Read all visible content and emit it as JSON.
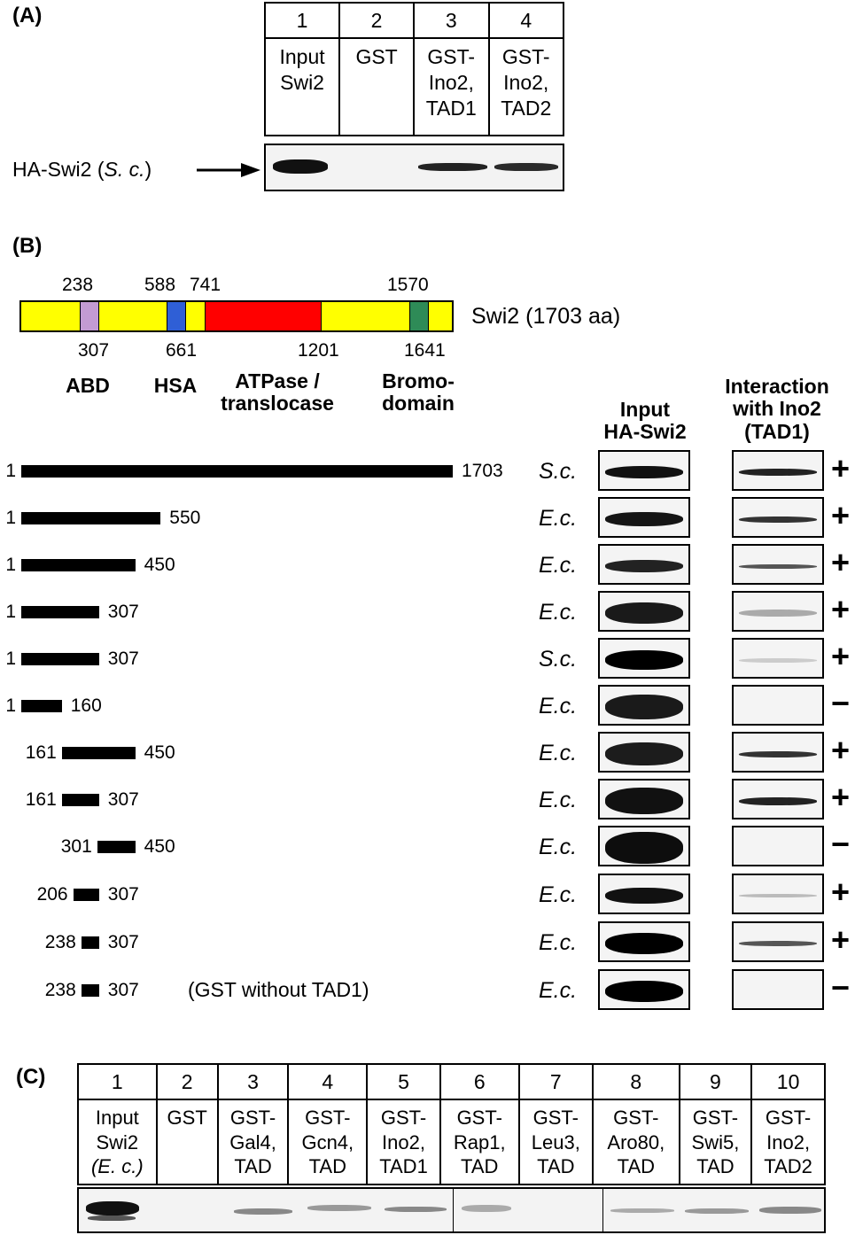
{
  "panelA": {
    "letter": "(A)",
    "lanes": [
      {
        "num": "1",
        "desc": [
          "Input",
          "Swi2"
        ]
      },
      {
        "num": "2",
        "desc": [
          "GST"
        ]
      },
      {
        "num": "3",
        "desc": [
          "GST-",
          "Ino2,",
          "TAD1"
        ]
      },
      {
        "num": "4",
        "desc": [
          "GST-",
          "Ino2,",
          "TAD2"
        ]
      }
    ],
    "blot_label_pre": "HA-Swi2 (",
    "blot_label_italic": "S. c.",
    "blot_label_post": ")"
  },
  "panelB": {
    "letter": "(B)",
    "protein_label": "Swi2 (1703 aa)",
    "positions_top": [
      "238",
      "588",
      "741",
      "1570"
    ],
    "positions_bottom": [
      "307",
      "661",
      "1201",
      "1641"
    ],
    "domains": [
      "ABD",
      "HSA",
      "ATPase /\ntranslocase",
      "Bromo-\ndomain"
    ],
    "domain_colors": {
      "backbone": "#ffff00",
      "abd": "#c39bd3",
      "hsa": "#2f5fd6",
      "atpase": "#ff0000",
      "bromo": "#2e8b57"
    },
    "col_input": "Input\nHA-Swi2",
    "col_interaction": "Interaction\nwith Ino2\n(TAD1)",
    "rows": [
      {
        "start": "1",
        "end": "1703",
        "src": "S.c.",
        "sign": "+",
        "note": ""
      },
      {
        "start": "1",
        "end": "550",
        "src": "E.c.",
        "sign": "+",
        "note": ""
      },
      {
        "start": "1",
        "end": "450",
        "src": "E.c.",
        "sign": "+",
        "note": ""
      },
      {
        "start": "1",
        "end": "307",
        "src": "E.c.",
        "sign": "+",
        "note": ""
      },
      {
        "start": "1",
        "end": "307",
        "src": "S.c.",
        "sign": "+",
        "note": ""
      },
      {
        "start": "1",
        "end": "160",
        "src": "E.c.",
        "sign": "−",
        "note": ""
      },
      {
        "start": "161",
        "end": "450",
        "src": "E.c.",
        "sign": "+",
        "note": ""
      },
      {
        "start": "161",
        "end": "307",
        "src": "E.c.",
        "sign": "+",
        "note": ""
      },
      {
        "start": "301",
        "end": "450",
        "src": "E.c.",
        "sign": "−",
        "note": ""
      },
      {
        "start": "206",
        "end": "307",
        "src": "E.c.",
        "sign": "+",
        "note": ""
      },
      {
        "start": "238",
        "end": "307",
        "src": "E.c.",
        "sign": "+",
        "note": ""
      },
      {
        "start": "238",
        "end": "307",
        "src": "E.c.",
        "sign": "−",
        "note": "(GST without TAD1)"
      }
    ]
  },
  "panelC": {
    "letter": "(C)",
    "lanes": [
      {
        "num": "1",
        "desc": [
          "Input",
          "Swi2",
          "(E. c.)"
        ]
      },
      {
        "num": "2",
        "desc": [
          "GST"
        ]
      },
      {
        "num": "3",
        "desc": [
          "GST-",
          "Gal4,",
          "TAD"
        ]
      },
      {
        "num": "4",
        "desc": [
          "GST-",
          "Gcn4,",
          "TAD"
        ]
      },
      {
        "num": "5",
        "desc": [
          "GST-",
          "Ino2,",
          "TAD1"
        ]
      },
      {
        "num": "6",
        "desc": [
          "GST-",
          "Rap1,",
          "TAD"
        ]
      },
      {
        "num": "7",
        "desc": [
          "GST-",
          "Leu3,",
          "TAD"
        ]
      },
      {
        "num": "8",
        "desc": [
          "GST-",
          "Aro80,",
          "TAD"
        ]
      },
      {
        "num": "9",
        "desc": [
          "GST-",
          "Swi5,",
          "TAD"
        ]
      },
      {
        "num": "10",
        "desc": [
          "GST-",
          "Ino2,",
          "TAD2"
        ]
      }
    ]
  }
}
